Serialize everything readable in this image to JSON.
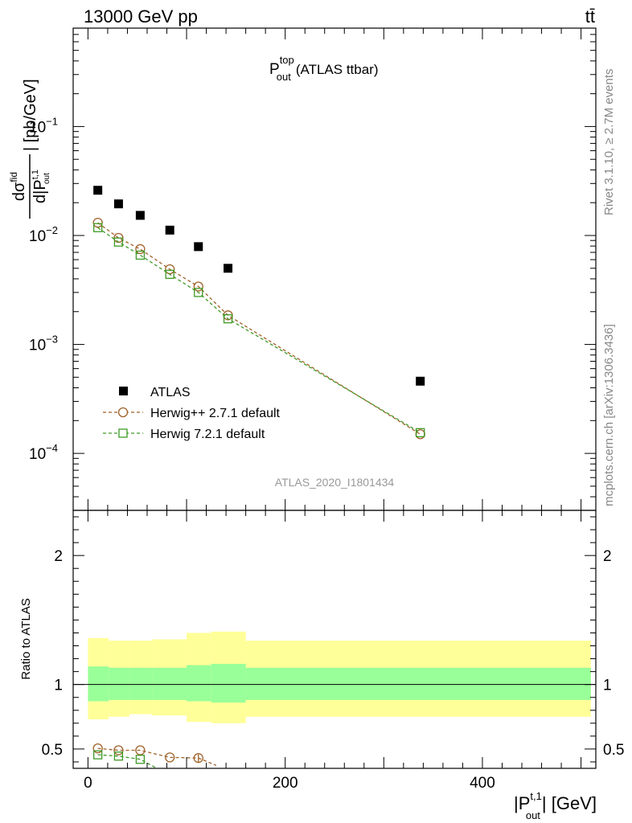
{
  "header": {
    "energy_label": "13000 GeV pp",
    "process_label": "tt̄"
  },
  "side_labels": {
    "rivet": "Rivet 3.1.10, ≥ 2.7M events",
    "mcplots": "mcplots.cern.ch [arXiv:1306.3436]"
  },
  "chart_data": [
    {
      "type": "scatter",
      "panel": "main",
      "title": "P_out^top (ATLAS ttbar)",
      "title_parts": {
        "main": "P",
        "sup": "top",
        "sub": "out",
        "rest": "(ATLAS ttbar)"
      },
      "ylabel": "dσ^fid / d|P_out^t,1| [pb/GeV]",
      "ylabel_parts": {
        "numerator": "dσ",
        "num_sup": "fid",
        "denominator": "d|P",
        "den_sup": "t,1",
        "den_sub": "out",
        "unit": "| [pb/GeV]"
      },
      "y_scale": "log",
      "ylim": [
        3e-05,
        0.8
      ],
      "xlim": [
        -15,
        515
      ],
      "y_tick_labels": [
        {
          "value": 0.1,
          "base": "10",
          "exp": "−1"
        },
        {
          "value": 0.01,
          "base": "10",
          "exp": "−2"
        },
        {
          "value": 0.001,
          "base": "10",
          "exp": "−3"
        },
        {
          "value": 0.0001,
          "base": "10",
          "exp": "−4"
        }
      ],
      "watermark": "ATLAS_2020_I1801434",
      "legend_position": "bottom-left",
      "series": [
        {
          "name": "ATLAS",
          "color": "#000000",
          "marker": "filled-square",
          "x": [
            10,
            31,
            53,
            83,
            112,
            142,
            337
          ],
          "y": [
            0.026,
            0.0195,
            0.0153,
            0.0112,
            0.0079,
            0.005,
            0.00046
          ]
        },
        {
          "name": "Herwig++ 2.7.1 default",
          "color": "#a0622a",
          "marker": "open-circle",
          "x": [
            10,
            31,
            53,
            83,
            112,
            142,
            337
          ],
          "y": [
            0.0131,
            0.0095,
            0.0075,
            0.0049,
            0.0034,
            0.00185,
            0.00015
          ]
        },
        {
          "name": "Herwig 7.2.1 default",
          "color": "#3e9a25",
          "marker": "open-square",
          "x": [
            10,
            31,
            53,
            83,
            112,
            142,
            337
          ],
          "y": [
            0.0118,
            0.0087,
            0.0066,
            0.0044,
            0.003,
            0.00172,
            0.000155
          ]
        }
      ]
    },
    {
      "type": "scatter",
      "panel": "ratio",
      "ylabel": "Ratio to ATLAS",
      "xlabel": "|P_out^t,1| [GeV]",
      "xlabel_parts": {
        "main": "|P",
        "sup": "t,1",
        "sub": "out",
        "rest": "| [GeV]"
      },
      "ylim": [
        0.35,
        2.35
      ],
      "xlim": [
        -15,
        515
      ],
      "y_ticks": [
        0.5,
        1,
        2
      ],
      "y_tick_labels": [
        "0.5",
        "1",
        "2"
      ],
      "x_ticks": [
        0,
        200,
        400
      ],
      "x_tick_labels": [
        "0",
        "200",
        "400"
      ],
      "uncertainty_bands": {
        "edges": [
          0,
          21,
          42,
          65,
          100,
          125,
          160,
          510
        ],
        "inner_low": [
          0.87,
          0.88,
          0.88,
          0.88,
          0.87,
          0.86,
          0.88
        ],
        "inner_high": [
          1.14,
          1.13,
          1.13,
          1.13,
          1.15,
          1.16,
          1.13
        ],
        "outer_low": [
          0.73,
          0.75,
          0.77,
          0.76,
          0.71,
          0.7,
          0.75
        ],
        "outer_high": [
          1.36,
          1.34,
          1.34,
          1.35,
          1.4,
          1.41,
          1.34
        ],
        "inner_color": "#99ff99",
        "outer_color": "#ffff99"
      },
      "series": [
        {
          "name": "Herwig++ 2.7.1 default",
          "color": "#a0622a",
          "marker": "open-circle",
          "x": [
            10,
            31,
            53,
            83,
            112
          ],
          "y": [
            0.505,
            0.49,
            0.49,
            0.435,
            0.43
          ],
          "yerr": [
            0,
            0,
            0,
            0,
            0.03
          ],
          "extends_to_x": 130
        },
        {
          "name": "Herwig 7.2.1 default",
          "color": "#3e9a25",
          "marker": "open-square",
          "x": [
            10,
            31,
            53
          ],
          "y": [
            0.455,
            0.445,
            0.42
          ],
          "yerr": [
            0,
            0,
            0
          ],
          "extends_to_x": 70
        }
      ]
    }
  ]
}
